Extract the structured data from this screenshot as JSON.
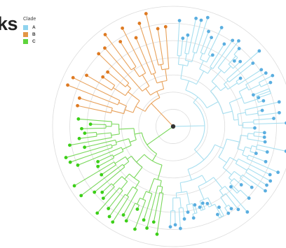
{
  "header": {
    "title_fragment": "ks"
  },
  "legend": {
    "title": "Clade",
    "items": [
      {
        "label": "A",
        "color": "#8fd3ee"
      },
      {
        "label": "B",
        "color": "#e39646"
      },
      {
        "label": "C",
        "color": "#5fd43c"
      }
    ]
  },
  "tree": {
    "type": "circular-phylogeny",
    "rings": 7,
    "root_color": "#333333",
    "colors": {
      "A_branch": "#a8dff0",
      "A_tip": "#5aaee0",
      "B_branch": "#e8a15a",
      "B_tip": "#de7a22",
      "C_branch": "#7ad85c",
      "C_tip": "#3ccf18",
      "ring": "#dcdcdc"
    },
    "clades": [
      {
        "name": "A",
        "tips": 64
      },
      {
        "name": "B",
        "tips": 17
      },
      {
        "name": "C",
        "tips": 30
      }
    ]
  }
}
